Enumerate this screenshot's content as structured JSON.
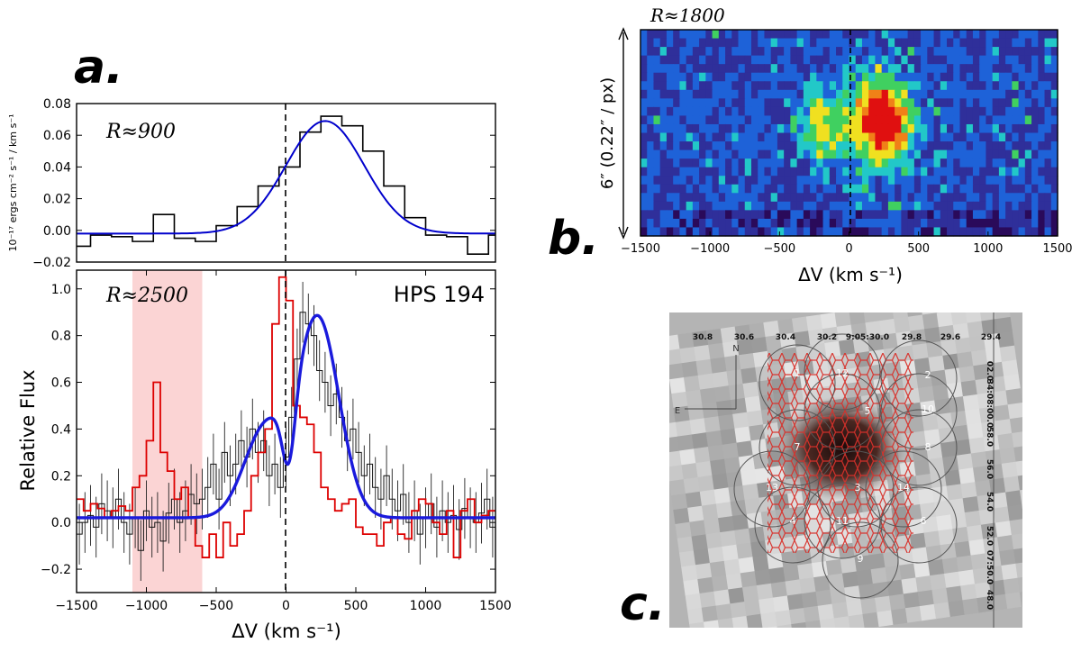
{
  "chart_data": [
    {
      "id": "a-top",
      "type": "line",
      "annotation": "R≈900",
      "ylabel": "10⁻¹⁷ ergs cm⁻² s⁻¹ / km s⁻¹",
      "xlim": [
        -1500,
        1500
      ],
      "ylim": [
        -0.02,
        0.08
      ],
      "yticks": [
        "0.08",
        "0.06",
        "0.04",
        "0.02",
        "0.00",
        "−0.02"
      ],
      "ytick_values": [
        0.08,
        0.06,
        0.04,
        0.02,
        0.0,
        -0.02
      ],
      "vline_x": 0,
      "series": [
        {
          "name": "observed",
          "style": "step",
          "color": "#000000",
          "x": [
            -1500,
            -1400,
            -1250,
            -1100,
            -950,
            -800,
            -650,
            -500,
            -350,
            -200,
            -50,
            100,
            250,
            400,
            550,
            700,
            850,
            1000,
            1150,
            1300,
            1450,
            1500
          ],
          "y": [
            -0.01,
            -0.003,
            -0.004,
            -0.007,
            0.01,
            -0.005,
            -0.007,
            0.003,
            0.015,
            0.028,
            0.04,
            0.062,
            0.072,
            0.066,
            0.05,
            0.028,
            0.008,
            -0.003,
            -0.004,
            -0.015,
            -0.003,
            -0.003
          ]
        },
        {
          "name": "fit",
          "style": "gaussian",
          "color": "#0000cc",
          "amplitude": 0.071,
          "center": 280,
          "sigma": 280,
          "baseline": -0.002
        }
      ]
    },
    {
      "id": "a-bottom",
      "type": "line",
      "title": "HPS 194",
      "annotation": "R≈2500",
      "ylabel": "Relative Flux",
      "xlabel": "ΔV (km s⁻¹)",
      "xlim": [
        -1500,
        1500
      ],
      "ylim": [
        -0.3,
        1.08
      ],
      "xticks": [
        "−1500",
        "−1000",
        "−500",
        "0",
        "500",
        "1000",
        "1500"
      ],
      "xtick_values": [
        -1500,
        -1000,
        -500,
        0,
        500,
        1000,
        1500
      ],
      "yticks": [
        "1.0",
        "0.8",
        "0.6",
        "0.4",
        "0.2",
        "0.0",
        "−0.2"
      ],
      "ytick_values": [
        1.0,
        0.8,
        0.6,
        0.4,
        0.2,
        0.0,
        -0.2
      ],
      "shaded_span": [
        -1100,
        -600
      ],
      "vline_x": 0,
      "series": [
        {
          "name": "red-spectrum",
          "style": "step",
          "color": "#dd0000",
          "x": [
            -1500,
            -1450,
            -1400,
            -1350,
            -1300,
            -1250,
            -1200,
            -1150,
            -1100,
            -1050,
            -1000,
            -950,
            -900,
            -850,
            -800,
            -750,
            -700,
            -650,
            -600,
            -550,
            -500,
            -450,
            -400,
            -350,
            -300,
            -250,
            -200,
            -150,
            -100,
            -50,
            0,
            50,
            100,
            150,
            200,
            250,
            300,
            350,
            400,
            450,
            500,
            550,
            600,
            650,
            700,
            750,
            800,
            850,
            900,
            950,
            1000,
            1050,
            1100,
            1150,
            1200,
            1250,
            1300,
            1350,
            1400,
            1450,
            1500
          ],
          "y": [
            0.1,
            0.05,
            0.08,
            0.06,
            0.02,
            0.05,
            0.07,
            0.05,
            0.15,
            0.2,
            0.35,
            0.6,
            0.3,
            0.22,
            0.1,
            0.15,
            0.02,
            -0.1,
            -0.15,
            -0.05,
            -0.15,
            0.0,
            -0.1,
            -0.05,
            0.05,
            0.2,
            0.3,
            0.4,
            0.85,
            1.05,
            0.95,
            0.5,
            0.45,
            0.42,
            0.3,
            0.15,
            0.1,
            0.05,
            0.08,
            0.1,
            -0.02,
            -0.05,
            -0.05,
            -0.1,
            0.0,
            0.02,
            -0.05,
            -0.07,
            0.05,
            0.1,
            0.08,
            0.0,
            -0.05,
            0.05,
            -0.15,
            0.05,
            0.1,
            0.0,
            0.03,
            0.05,
            0.0
          ]
        },
        {
          "name": "black-spectrum",
          "style": "step",
          "color": "#111111",
          "x": [
            -1500,
            -1460,
            -1420,
            -1380,
            -1340,
            -1300,
            -1260,
            -1220,
            -1180,
            -1140,
            -1100,
            -1060,
            -1020,
            -980,
            -940,
            -900,
            -860,
            -820,
            -780,
            -740,
            -700,
            -660,
            -620,
            -580,
            -540,
            -500,
            -460,
            -420,
            -380,
            -340,
            -300,
            -260,
            -220,
            -180,
            -140,
            -100,
            -60,
            -20,
            20,
            60,
            100,
            140,
            180,
            220,
            260,
            300,
            340,
            380,
            420,
            460,
            500,
            540,
            580,
            620,
            660,
            700,
            740,
            780,
            820,
            860,
            900,
            940,
            980,
            1020,
            1060,
            1100,
            1140,
            1180,
            1220,
            1260,
            1300,
            1340,
            1380,
            1420,
            1460,
            1500
          ],
          "y": [
            -0.05,
            0.0,
            0.03,
            -0.02,
            0.08,
            0.05,
            0.02,
            0.1,
            0.0,
            -0.05,
            0.02,
            -0.12,
            0.05,
            -0.02,
            0.0,
            -0.08,
            0.04,
            0.1,
            0.0,
            0.05,
            0.12,
            0.08,
            0.1,
            0.15,
            0.25,
            0.1,
            0.3,
            0.2,
            0.25,
            0.35,
            0.28,
            0.4,
            0.3,
            0.35,
            0.2,
            0.25,
            0.15,
            0.28,
            0.45,
            0.7,
            0.9,
            0.85,
            0.8,
            0.65,
            0.6,
            0.5,
            0.55,
            0.45,
            0.35,
            0.4,
            0.3,
            0.2,
            0.25,
            0.15,
            0.1,
            0.2,
            0.1,
            0.05,
            0.12,
            0.0,
            0.05,
            -0.05,
            0.02,
            0.08,
            -0.02,
            0.05,
            0.0,
            0.03,
            -0.03,
            0.06,
            0.02,
            0.0,
            0.04,
            0.1,
            -0.02,
            -0.02
          ]
        },
        {
          "name": "fit",
          "style": "double-gaussian",
          "color": "#1a1adc",
          "baseline": 0.02,
          "components": [
            {
              "amplitude": 0.38,
              "center": -150,
              "sigma": 150
            },
            {
              "amplitude": 0.85,
              "center": 230,
              "sigma": 150
            }
          ],
          "absorption": {
            "depth": 0.55,
            "center": 15,
            "sigma": 45
          }
        }
      ]
    },
    {
      "id": "b",
      "type": "heatmap",
      "annotation": "R≈1800",
      "ylabel": "6″ (0.22″ / px)",
      "xlabel": "ΔV (km s⁻¹)",
      "xlim": [
        -1500,
        1500
      ],
      "xticks": [
        "−1500",
        "−1000",
        "−500",
        "0",
        "500",
        "1000",
        "1500"
      ],
      "xtick_values": [
        -1500,
        -1000,
        -500,
        0,
        500,
        1000,
        1500
      ],
      "vline_x": 0,
      "colormap": [
        "#2a0a5a",
        "#2f2f9a",
        "#1e62d8",
        "#22c8c8",
        "#40d060",
        "#f0e020",
        "#f08018",
        "#e01010"
      ],
      "grid_cols": 64,
      "grid_rows": 24,
      "emission": [
        {
          "center_kms": 230,
          "row": 10,
          "sigma_kms": 150,
          "sigma_rows": 3.2,
          "amplitude": 7.2
        },
        {
          "center_kms": -200,
          "row": 11,
          "sigma_kms": 110,
          "sigma_rows": 2.4,
          "amplitude": 3.6
        }
      ]
    },
    {
      "id": "c",
      "type": "image",
      "ra_labels": [
        "30.8",
        "30.6",
        "30.4",
        "30.2",
        "9:05:30.0",
        "29.8",
        "29.6",
        "29.4"
      ],
      "dec_labels": [
        "02.0",
        "34:08:00.0",
        "58.0",
        "56.0",
        "54.0",
        "52.0",
        "07:50.0",
        "48.0"
      ],
      "compass": [
        "N",
        "E"
      ],
      "fiber_numbers": [
        "1",
        "12",
        "2",
        "5",
        "10",
        "7",
        "8",
        "13",
        "3",
        "14",
        "4",
        "11",
        "6",
        "9"
      ]
    }
  ],
  "panel_labels": [
    "a.",
    "b.",
    "c."
  ]
}
